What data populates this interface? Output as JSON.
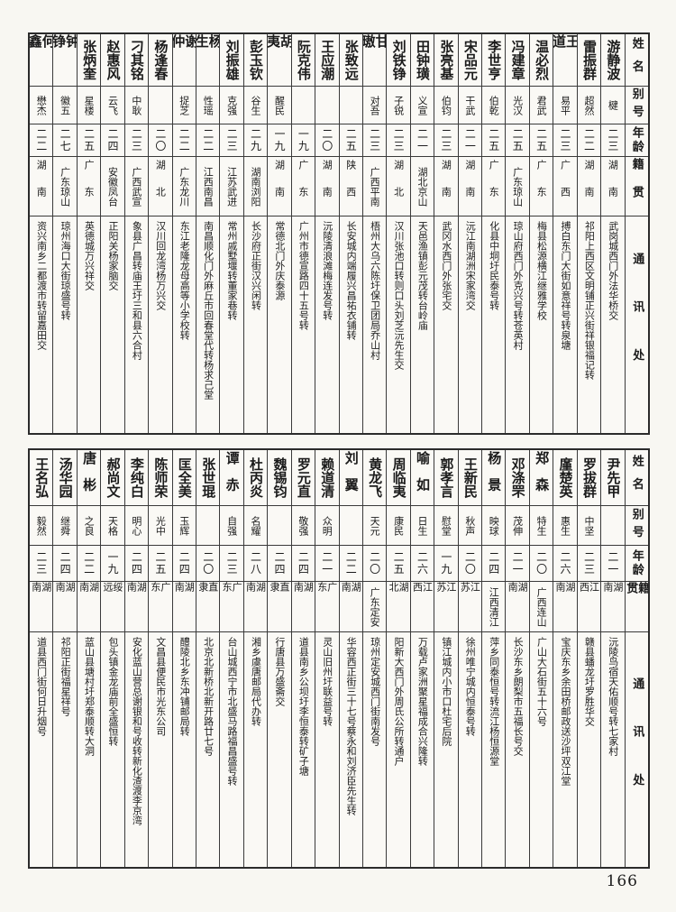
{
  "page_number": "166",
  "tables": [
    {
      "headers": {
        "name": "姓名",
        "alias": "别号",
        "age": "年龄",
        "native": "籍贯",
        "address": "通讯处"
      },
      "people": [
        {
          "name": "游静波",
          "alias": "楗",
          "age": "二三",
          "native": "湖南",
          "address": "武岗城西门外法华桥交"
        },
        {
          "name": "雷振群",
          "alias": "超然",
          "age": "二二",
          "native": "湖南",
          "address": "祁阳上西区文明铺正兴街祥银福记转"
        },
        {
          "name": "王道",
          "alias": "易平",
          "age": "二三",
          "native": "广西",
          "address": "搏白东门大街如意祥号转泉塘"
        },
        {
          "name": "温必烈",
          "alias": "君武",
          "age": "二五",
          "native": "广东",
          "address": "梅县松源横江继雅学校"
        },
        {
          "name": "冯建章",
          "alias": "光汉",
          "age": "二五",
          "native": "广东琼山",
          "address": "琼山府西门外克兴号转苍英村"
        },
        {
          "name": "李世亨",
          "alias": "伯乾",
          "age": "二五",
          "native": "广东",
          "address": "化县中垌圩民泰号转"
        },
        {
          "name": "宋品元",
          "alias": "干武",
          "age": "二一",
          "native": "湖南",
          "address": "沅江南湖洲宋家湾交"
        },
        {
          "name": "张亮基",
          "alias": "伯钧",
          "age": "二三",
          "native": "湖南",
          "address": "武冈水西门外张宅交"
        },
        {
          "name": "田钟璜",
          "alias": "义宣",
          "age": "二一",
          "native": "湖北京山",
          "address": "天邑渔镇彭元茂转台岭庙"
        },
        {
          "name": "刘铁铮",
          "alias": "子锐",
          "age": "二三",
          "native": "湖北",
          "address": "汉川张池口转则口头刘芝沅先生交"
        },
        {
          "name": "甘璈",
          "alias": "对吾",
          "age": "二三",
          "native": "广西平南",
          "address": "梧州大乌六陈圩保卫团局乔山村"
        },
        {
          "name": "张致远",
          "alias": "",
          "age": "二五",
          "native": "陕西",
          "address": "长安城内端履兴昌祐衣铺转"
        },
        {
          "name": "王应潮",
          "alias": "",
          "age": "二〇",
          "native": "湖南",
          "address": "沅陵清浪滩梅连发号转"
        },
        {
          "name": "阮克伟",
          "alias": "",
          "age": "一九",
          "native": "广东",
          "address": "广州市德宣路四十五号转"
        },
        {
          "name": "胡夷",
          "alias": "醒民",
          "age": "一九",
          "native": "湖南",
          "address": "常德北门外庆泰源"
        },
        {
          "name": "彭玉钦",
          "alias": "谷生",
          "age": "二九",
          "native": "湖南浏阳",
          "address": "长沙府正街汉兴闲转"
        },
        {
          "name": "刘振雄",
          "alias": "克强",
          "age": "二三",
          "native": "江苏武进",
          "address": "常州戚墅堰转董家巷转"
        },
        {
          "name": "杨生",
          "alias": "性瑶",
          "age": "二二",
          "native": "江西南昌",
          "address": "南昌顺化门外麻丘市回春堂代转杨求己堂"
        },
        {
          "name": "谢仲",
          "alias": "捉芝",
          "age": "二二",
          "native": "广东龙川",
          "address": "东江老隆龙母高等小学校转"
        },
        {
          "name": "杨逢春",
          "alias": "",
          "age": "二〇",
          "native": "湖北",
          "address": "汉川回龙湾杨万兴交"
        },
        {
          "name": "刁其铭",
          "alias": "中耿",
          "age": "二三",
          "native": "广西武宣",
          "address": "象县广昌转庙王圩三和县六合村"
        },
        {
          "name": "赵惠风",
          "alias": "云飞",
          "age": "二四",
          "native": "安徽凤台",
          "address": "正阳关杨家脑交"
        },
        {
          "name": "张炳奎",
          "alias": "星楼",
          "age": "二五",
          "native": "广东",
          "address": "英德城万兴祥交"
        },
        {
          "name": "钟铮",
          "alias": "徽五",
          "age": "二七",
          "native": "广东琼山",
          "address": "琼州海口大街琼盛号转"
        },
        {
          "name": "何鑫",
          "alias": "懋杰",
          "age": "二二",
          "native": "湖南",
          "address": "资兴南乡二都渡市转留嘉田交"
        }
      ]
    },
    {
      "headers": {
        "name": "姓名",
        "alias": "别号",
        "age": "年龄",
        "native": "籍贯",
        "address": "通讯处"
      },
      "people": [
        {
          "name": "尹先甲",
          "alias": "",
          "age": "二一",
          "native": "湖南",
          "address": "沅陵鸟宿天佑顺号转七家村"
        },
        {
          "name": "罗拔群",
          "alias": "中坚",
          "age": "二三",
          "native": "江西",
          "address": "赣县蟠龙圩罗胜华交"
        },
        {
          "name": "廑楚英",
          "alias": "惠生",
          "age": "二六",
          "native": "湖南",
          "address": "宝庆东乡余田桥邮政送沙坪双江堂"
        },
        {
          "name": "郑森",
          "alias": "特生",
          "age": "二〇",
          "native": "广西连山",
          "address": "广山大石街五十六号"
        },
        {
          "name": "邓涤罘",
          "alias": "茂伸",
          "age": "二一",
          "native": "湖南",
          "address": "长沙东乡朗梨市五福长号交"
        },
        {
          "name": "杨景",
          "alias": "映球",
          "age": "二四",
          "native": "江西清江",
          "address": "萍乡同泰恒号转流江杨恒源堂"
        },
        {
          "name": "王新民",
          "alias": "秋声",
          "age": "二〇",
          "native": "江苏",
          "address": "徐州唯宁城内恒泰号转"
        },
        {
          "name": "郭孝言",
          "alias": "慰堂",
          "age": "一九",
          "native": "江苏",
          "address": "镇江城内小市口杜宅后院"
        },
        {
          "name": "喻如",
          "alias": "日生",
          "age": "二六",
          "native": "江西",
          "address": "万载卢家洲聚星福成合兴隆转"
        },
        {
          "name": "周临夷",
          "alias": "康民",
          "age": "二五",
          "native": "湖北",
          "address": "阳新大西门外周氏公所转通户"
        },
        {
          "name": "黄龙飞",
          "alias": "天元",
          "age": "二〇",
          "native": "广东定安",
          "address": "琼州定安城西门街南发号"
        },
        {
          "name": "刘翼",
          "alias": "",
          "age": "二二",
          "native": "湖南",
          "address": "华容西正街三十七号蔡永和刘济臣先生转"
        },
        {
          "name": "赖道清",
          "alias": "众明",
          "age": "二一",
          "native": "广东",
          "address": "灵山旧州圩联益号转"
        },
        {
          "name": "罗元直",
          "alias": "敬强",
          "age": "二四",
          "native": "湖南",
          "address": "道县南乡公坝圩李恒泰转矿子塘"
        },
        {
          "name": "魏锡钧",
          "alias": "",
          "age": "二四",
          "native": "直隶",
          "address": "行唐县万盛斋交"
        },
        {
          "name": "杜丙炎",
          "alias": "名耀",
          "age": "二八",
          "native": "湖南",
          "address": "湘乡虞唐邮局代办转"
        },
        {
          "name": "谭赤",
          "alias": "自强",
          "age": "二三",
          "native": "广东",
          "address": "台山城西宁市北盛马路福昌盛号转"
        },
        {
          "name": "张世琨",
          "alias": "",
          "age": "二〇",
          "native": "直隶",
          "address": "北京北新桥北新开路廿七号"
        },
        {
          "name": "匡全美",
          "alias": "玉辉",
          "age": "二四",
          "native": "湖南",
          "address": "醴陵北乡东冲铺邮局转"
        },
        {
          "name": "陈师荣",
          "alias": "光中",
          "age": "二五",
          "native": "广东",
          "address": "文昌县便民市光东公司"
        },
        {
          "name": "李纯白",
          "alias": "明心",
          "age": "二四",
          "native": "湖南",
          "address": "安化蓝山营总谢银和号收转新化渣渡李京湾"
        },
        {
          "name": "郝尚文",
          "alias": "天格",
          "age": "一九",
          "native": "绥远",
          "address": "包头镇金龙庙前全盛恒转"
        },
        {
          "name": "唐彬",
          "alias": "之良",
          "age": "二二",
          "native": "湖南",
          "address": "蓝山县塘村圩郑泰顺转大洞"
        },
        {
          "name": "汤华园",
          "alias": "继舜",
          "age": "二四",
          "native": "湖南",
          "address": "祁阳正街福星祥号"
        },
        {
          "name": "王名弘",
          "alias": "毅然",
          "age": "二三",
          "native": "湖南",
          "address": "道县西门街何日升烟号"
        }
      ]
    }
  ]
}
